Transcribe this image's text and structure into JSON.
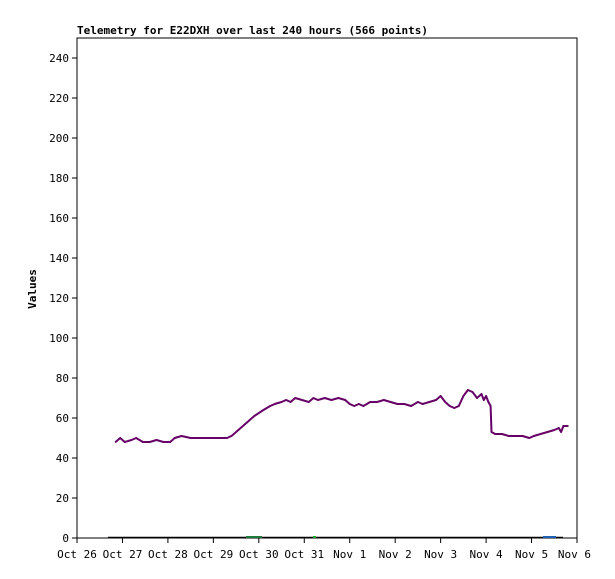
{
  "chart_data": {
    "type": "line",
    "title": "Telemetry for E22DXH over last 240 hours (566 points)",
    "xlabel": "",
    "ylabel": "Values",
    "xlim": [
      "Oct 26",
      "Nov 6"
    ],
    "ylim": [
      0,
      250
    ],
    "grid": false,
    "x_tick_labels": [
      "Oct 26",
      "Oct 27",
      "Oct 28",
      "Oct 29",
      "Oct 30",
      "Oct 31",
      "Nov 1",
      "Nov 2",
      "Nov 3",
      "Nov 4",
      "Nov 5",
      "Nov 6"
    ],
    "y_ticks": [
      0,
      20,
      40,
      60,
      80,
      100,
      120,
      140,
      160,
      180,
      200,
      220,
      240
    ],
    "series": [
      {
        "color": "#660066",
        "x_unit": "days since Oct 26",
        "points": [
          [
            0.85,
            48
          ],
          [
            0.95,
            50
          ],
          [
            1.05,
            48
          ],
          [
            1.2,
            49
          ],
          [
            1.3,
            50
          ],
          [
            1.45,
            48
          ],
          [
            1.6,
            48
          ],
          [
            1.75,
            49
          ],
          [
            1.9,
            48
          ],
          [
            2.05,
            48
          ],
          [
            2.15,
            50
          ],
          [
            2.3,
            51
          ],
          [
            2.5,
            50
          ],
          [
            2.7,
            50
          ],
          [
            2.9,
            50
          ],
          [
            3.1,
            50
          ],
          [
            3.3,
            50
          ],
          [
            3.4,
            51
          ],
          [
            3.5,
            53
          ],
          [
            3.7,
            57
          ],
          [
            3.9,
            61
          ],
          [
            4.1,
            64
          ],
          [
            4.25,
            66
          ],
          [
            4.35,
            67
          ],
          [
            4.5,
            68
          ],
          [
            4.6,
            69
          ],
          [
            4.7,
            68
          ],
          [
            4.8,
            70
          ],
          [
            4.95,
            69
          ],
          [
            5.1,
            68
          ],
          [
            5.2,
            70
          ],
          [
            5.3,
            69
          ],
          [
            5.45,
            70
          ],
          [
            5.6,
            69
          ],
          [
            5.75,
            70
          ],
          [
            5.9,
            69
          ],
          [
            6.0,
            67
          ],
          [
            6.1,
            66
          ],
          [
            6.2,
            67
          ],
          [
            6.3,
            66
          ],
          [
            6.45,
            68
          ],
          [
            6.6,
            68
          ],
          [
            6.75,
            69
          ],
          [
            6.9,
            68
          ],
          [
            7.05,
            67
          ],
          [
            7.2,
            67
          ],
          [
            7.35,
            66
          ],
          [
            7.5,
            68
          ],
          [
            7.6,
            67
          ],
          [
            7.75,
            68
          ],
          [
            7.9,
            69
          ],
          [
            8.0,
            71
          ],
          [
            8.1,
            68
          ],
          [
            8.2,
            66
          ],
          [
            8.3,
            65
          ],
          [
            8.4,
            66
          ],
          [
            8.5,
            71
          ],
          [
            8.6,
            74
          ],
          [
            8.7,
            73
          ],
          [
            8.8,
            70
          ],
          [
            8.9,
            72
          ],
          [
            8.95,
            69
          ],
          [
            9.0,
            71
          ],
          [
            9.05,
            68
          ],
          [
            9.1,
            66
          ],
          [
            9.12,
            53
          ],
          [
            9.2,
            52
          ],
          [
            9.35,
            52
          ],
          [
            9.5,
            51
          ],
          [
            9.65,
            51
          ],
          [
            9.8,
            51
          ],
          [
            9.95,
            50
          ],
          [
            10.05,
            51
          ],
          [
            10.2,
            52
          ],
          [
            10.35,
            53
          ],
          [
            10.5,
            54
          ],
          [
            10.6,
            55
          ],
          [
            10.65,
            53
          ],
          [
            10.7,
            56
          ],
          [
            10.8,
            56
          ]
        ]
      }
    ]
  }
}
